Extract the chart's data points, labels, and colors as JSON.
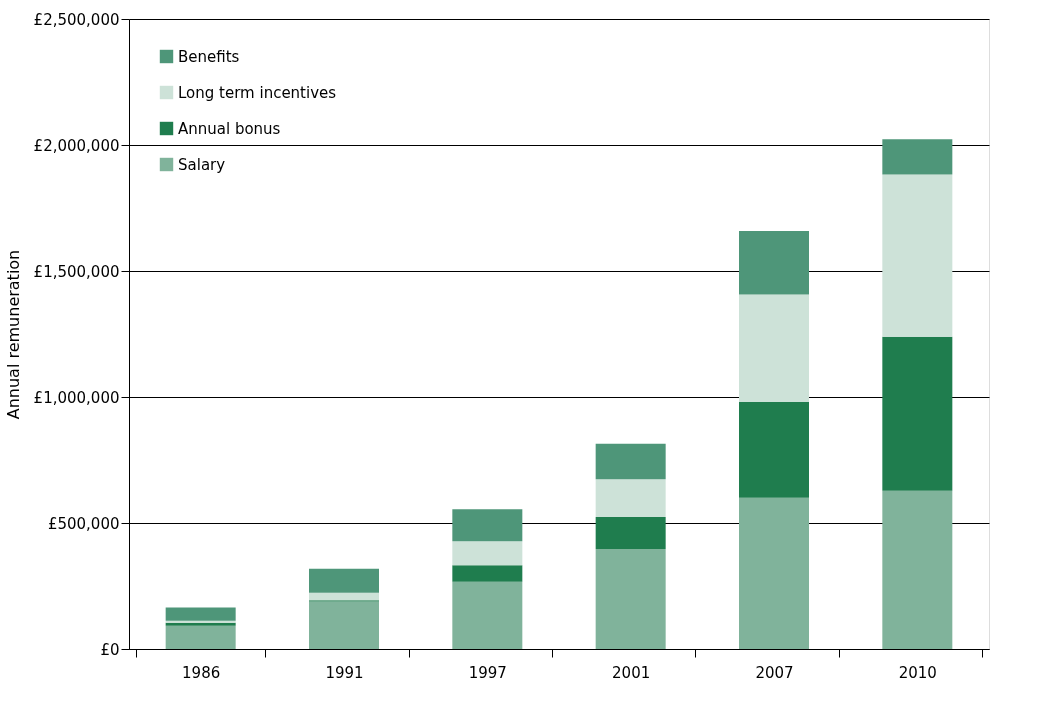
{
  "chart_data": {
    "type": "bar",
    "stacked": true,
    "ylabel": "Annual remuneration",
    "categories": [
      "1986",
      "1991",
      "1997",
      "2001",
      "2007",
      "2010"
    ],
    "series": [
      {
        "name": "Salary",
        "color": "#80b39b",
        "values": [
          92000,
          188000,
          267000,
          397000,
          600000,
          628000
        ]
      },
      {
        "name": "Annual bonus",
        "color": "#1f7d4e",
        "values": [
          12000,
          5000,
          65000,
          127000,
          380000,
          611000
        ]
      },
      {
        "name": "Long term incentives",
        "color": "#cde2d8",
        "values": [
          8000,
          30000,
          96000,
          150000,
          427000,
          644000
        ]
      },
      {
        "name": "Benefits",
        "color": "#4e9679",
        "values": [
          53000,
          95000,
          127000,
          140000,
          252000,
          140000
        ]
      }
    ],
    "ylim": [
      0,
      2500000
    ],
    "yticks": [
      {
        "value": 0,
        "label": "£0"
      },
      {
        "value": 500000,
        "label": "£500,000"
      },
      {
        "value": 1000000,
        "label": "£1,000,000"
      },
      {
        "value": 1500000,
        "label": "£1,500,000"
      },
      {
        "value": 2000000,
        "label": "£2,000,000"
      },
      {
        "value": 2500000,
        "label": "£2,500,000"
      }
    ],
    "grid": "y",
    "legend": "top left"
  }
}
